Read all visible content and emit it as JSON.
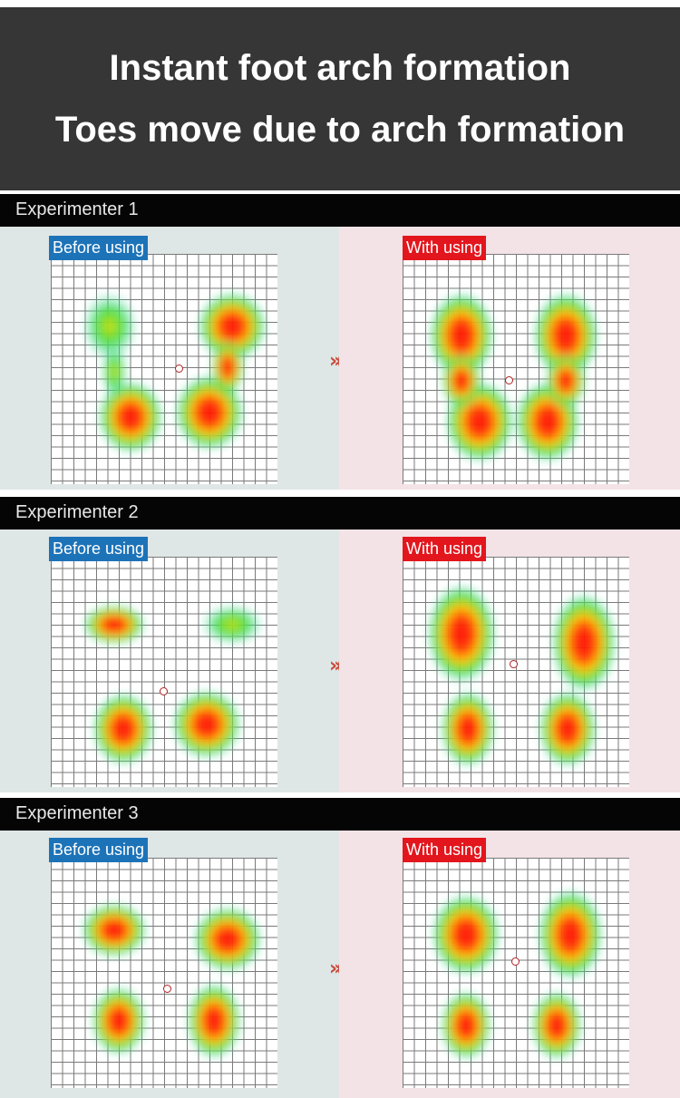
{
  "header": {
    "line1": "Instant foot arch formation",
    "line2": "Toes move due to arch formation",
    "background": "#363636"
  },
  "labels": {
    "before": "Before using",
    "after": "With using",
    "before_color": "#1d73b8",
    "after_color": "#e3161d"
  },
  "arrow_glyph": "»»",
  "experiments": [
    {
      "title": "Experimenter 1"
    },
    {
      "title": "Experimenter 2"
    },
    {
      "title": "Experimenter 3"
    }
  ]
}
